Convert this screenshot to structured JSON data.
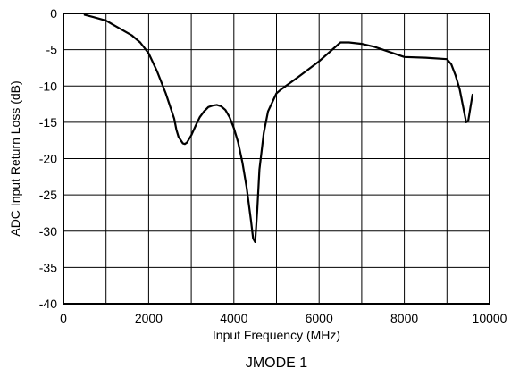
{
  "chart_data": {
    "type": "line",
    "title": "",
    "caption": "JMODE 1",
    "xlabel": "Input Frequency (MHz)",
    "ylabel": "ADC Input Return Loss (dB)",
    "xlim": [
      0,
      10000
    ],
    "ylim": [
      -40,
      0
    ],
    "xticks": [
      0,
      2000,
      4000,
      6000,
      8000,
      10000
    ],
    "yticks": [
      0,
      -5,
      -10,
      -15,
      -20,
      -25,
      -30,
      -35,
      -40
    ],
    "x_gridlines": [
      1000,
      2000,
      3000,
      4000,
      5000,
      6000,
      7000,
      8000,
      9000
    ],
    "y_gridlines": [
      -5,
      -10,
      -15,
      -20,
      -25,
      -30,
      -35
    ],
    "grid": true,
    "legend": "none",
    "series": [
      {
        "x": [
          500,
          700,
          1000,
          1300,
          1600,
          1800,
          2000,
          2200,
          2400,
          2600,
          2650,
          2700,
          2800,
          2850,
          2900,
          3000,
          3100,
          3200,
          3300,
          3400,
          3500,
          3600,
          3700,
          3800,
          3900,
          4000,
          4100,
          4200,
          4300,
          4400,
          4450,
          4500,
          4550,
          4600,
          4700,
          4800,
          5000,
          5100,
          5500,
          6000,
          6500,
          6700,
          7000,
          7300,
          7600,
          8000,
          8500,
          9000,
          9100,
          9200,
          9300,
          9400,
          9450,
          9500,
          9550,
          9600
        ],
        "y": [
          -0.2,
          -0.5,
          -1.0,
          -2.0,
          -3.0,
          -4.0,
          -5.5,
          -8.0,
          -11.0,
          -14.5,
          -16.0,
          -17.0,
          -17.9,
          -18.0,
          -17.8,
          -16.8,
          -15.5,
          -14.3,
          -13.5,
          -12.9,
          -12.7,
          -12.6,
          -12.8,
          -13.3,
          -14.3,
          -15.8,
          -17.8,
          -20.5,
          -24.0,
          -28.5,
          -31.0,
          -31.5,
          -27.0,
          -21.5,
          -16.5,
          -13.5,
          -11.0,
          -10.5,
          -8.8,
          -6.6,
          -4.0,
          -4.0,
          -4.2,
          -4.6,
          -5.2,
          -6.0,
          -6.1,
          -6.3,
          -7.0,
          -8.5,
          -10.5,
          -13.5,
          -15.0,
          -14.8,
          -13.0,
          -11.2
        ]
      }
    ]
  }
}
